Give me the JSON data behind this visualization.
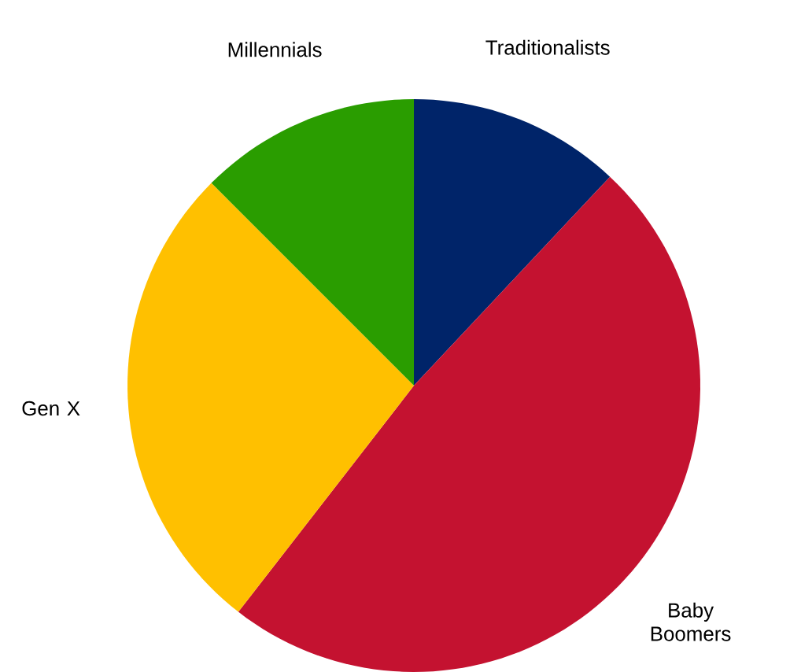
{
  "chart_data": {
    "type": "pie",
    "categories": [
      "Traditionalists",
      "Baby Boomers",
      "Gen X",
      "Millennials"
    ],
    "values": [
      12,
      48.5,
      27,
      12.5
    ],
    "colors": [
      "#002469",
      "#c41230",
      "#ffc000",
      "#2a9d00"
    ]
  }
}
